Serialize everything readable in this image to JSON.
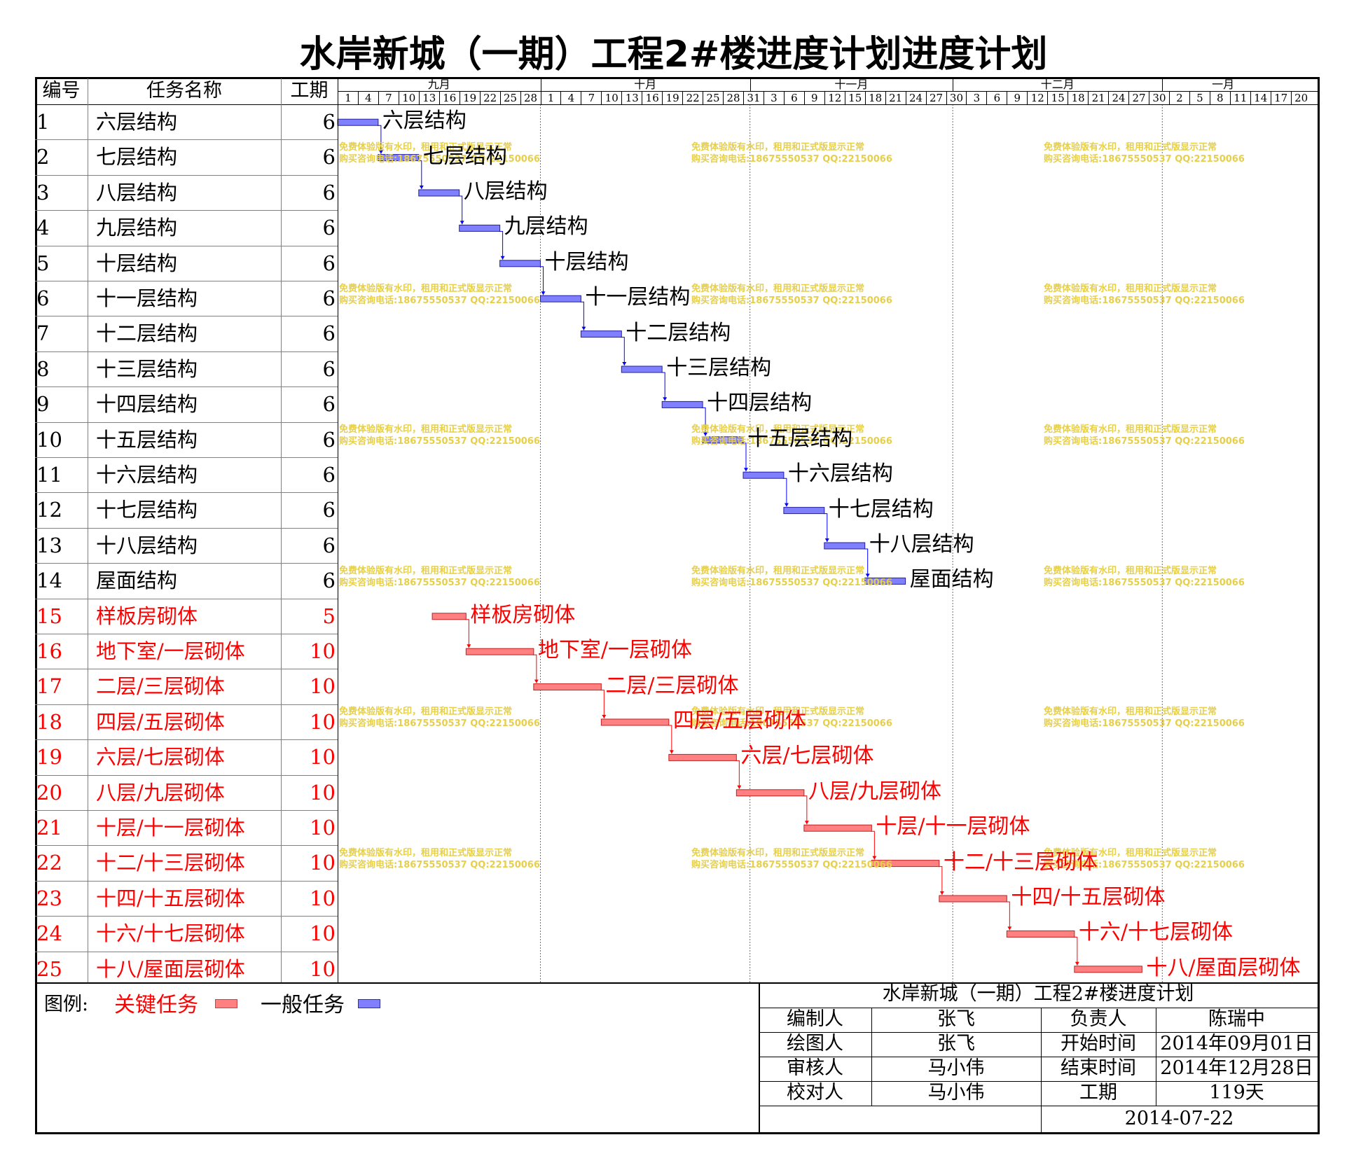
{
  "title": "水岸新城（一期）工程2#楼进度计划进度计划",
  "table_headers": {
    "no": "编号",
    "name": "任务名称",
    "duration": "工期"
  },
  "months": [
    "九月",
    "十月",
    "十一月",
    "十二月",
    "一月"
  ],
  "day_ticks": [
    "1",
    "4",
    "7",
    "10",
    "13",
    "16",
    "19",
    "22",
    "25",
    "28",
    "1",
    "4",
    "7",
    "10",
    "13",
    "16",
    "19",
    "22",
    "25",
    "28",
    "31",
    "3",
    "6",
    "9",
    "12",
    "15",
    "18",
    "21",
    "24",
    "27",
    "30",
    "3",
    "6",
    "9",
    "12",
    "15",
    "18",
    "21",
    "24",
    "27",
    "30",
    "2",
    "5",
    "8",
    "11",
    "14",
    "17",
    "20"
  ],
  "colors": {
    "critical": "#ff8080",
    "normal": "#8080ff",
    "critical_text": "#ff0000",
    "watermark": "#e6cf4a"
  },
  "watermark": {
    "line1": "免费体验版有水印，租用和正式版显示正常",
    "line2": "购买咨询电话:18675550537 QQ:22150066"
  },
  "chart_data": {
    "type": "gantt",
    "title": "水岸新城（一期）工程2#楼进度计划进度计划",
    "x_axis": {
      "unit": "day",
      "start": "2014-09-01",
      "months": [
        "九月",
        "十月",
        "十一月",
        "十二月",
        "一月"
      ]
    },
    "tasks": [
      {
        "id": "1",
        "name": "六层结构",
        "duration": "6",
        "start_day": 0,
        "critical": false
      },
      {
        "id": "2",
        "name": "七层结构",
        "duration": "6",
        "start_day": 6,
        "critical": false
      },
      {
        "id": "3",
        "name": "八层结构",
        "duration": "6",
        "start_day": 12,
        "critical": false
      },
      {
        "id": "4",
        "name": "九层结构",
        "duration": "6",
        "start_day": 18,
        "critical": false
      },
      {
        "id": "5",
        "name": "十层结构",
        "duration": "6",
        "start_day": 24,
        "critical": false
      },
      {
        "id": "6",
        "name": "十一层结构",
        "duration": "6",
        "start_day": 30,
        "critical": false
      },
      {
        "id": "7",
        "name": "十二层结构",
        "duration": "6",
        "start_day": 36,
        "critical": false
      },
      {
        "id": "8",
        "name": "十三层结构",
        "duration": "6",
        "start_day": 42,
        "critical": false
      },
      {
        "id": "9",
        "name": "十四层结构",
        "duration": "6",
        "start_day": 48,
        "critical": false
      },
      {
        "id": "10",
        "name": "十五层结构",
        "duration": "6",
        "start_day": 54,
        "critical": false
      },
      {
        "id": "11",
        "name": "十六层结构",
        "duration": "6",
        "start_day": 60,
        "critical": false
      },
      {
        "id": "12",
        "name": "十七层结构",
        "duration": "6",
        "start_day": 66,
        "critical": false
      },
      {
        "id": "13",
        "name": "十八层结构",
        "duration": "6",
        "start_day": 72,
        "critical": false
      },
      {
        "id": "14",
        "name": "屋面结构",
        "duration": "6",
        "start_day": 78,
        "critical": false
      },
      {
        "id": "15",
        "name": "样板房砌体",
        "duration": "5",
        "start_day": 14,
        "critical": true
      },
      {
        "id": "16",
        "name": "地下室/一层砌体",
        "duration": "10",
        "start_day": 19,
        "critical": true
      },
      {
        "id": "17",
        "name": "二层/三层砌体",
        "duration": "10",
        "start_day": 29,
        "critical": true
      },
      {
        "id": "18",
        "name": "四层/五层砌体",
        "duration": "10",
        "start_day": 39,
        "critical": true
      },
      {
        "id": "19",
        "name": "六层/七层砌体",
        "duration": "10",
        "start_day": 49,
        "critical": true
      },
      {
        "id": "20",
        "name": "八层/九层砌体",
        "duration": "10",
        "start_day": 59,
        "critical": true
      },
      {
        "id": "21",
        "name": "十层/十一层砌体",
        "duration": "10",
        "start_day": 69,
        "critical": true
      },
      {
        "id": "22",
        "name": "十二/十三层砌体",
        "duration": "10",
        "start_day": 79,
        "critical": true
      },
      {
        "id": "23",
        "name": "十四/十五层砌体",
        "duration": "10",
        "start_day": 89,
        "critical": true
      },
      {
        "id": "24",
        "name": "十六/十七层砌体",
        "duration": "10",
        "start_day": 99,
        "critical": true
      },
      {
        "id": "25",
        "name": "十八/屋面层砌体",
        "duration": "10",
        "start_day": 109,
        "critical": true
      }
    ]
  },
  "legend": {
    "label": "图例:",
    "critical": "关键任务",
    "normal": "一般任务"
  },
  "footer": {
    "title": "水岸新城（一期）工程2#楼进度计划",
    "rows": [
      [
        "编制人",
        "张飞",
        "负责人",
        "陈瑞中"
      ],
      [
        "绘图人",
        "张飞",
        "开始时间",
        "2014年09月01日"
      ],
      [
        "审核人",
        "马小伟",
        "结束时间",
        "2014年12月28日"
      ],
      [
        "校对人",
        "马小伟",
        "工期",
        "119天"
      ]
    ],
    "date": "2014-07-22"
  }
}
